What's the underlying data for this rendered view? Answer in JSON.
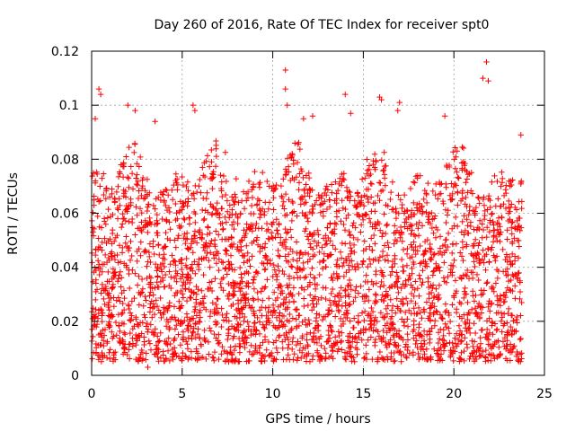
{
  "chart_data": {
    "type": "scatter",
    "title": "Day 260 of 2016, Rate Of TEC Index for receiver spt0",
    "xlabel": "GPS time / hours",
    "ylabel": "ROTI / TECUs",
    "xlim": [
      0,
      25
    ],
    "ylim": [
      0,
      0.12
    ],
    "xticks": [
      0,
      5,
      10,
      15,
      20,
      25
    ],
    "xtick_labels": [
      "0",
      "5",
      "10",
      "15",
      "20",
      "25"
    ],
    "yticks": [
      0,
      0.02,
      0.04,
      0.06,
      0.08,
      0.1,
      0.12
    ],
    "ytick_labels": [
      "0",
      "0.02",
      "0.04",
      "0.06",
      "0.08",
      "0.1",
      "0.12"
    ],
    "grid": true,
    "marker": "+",
    "series": [
      {
        "name": "spt0",
        "color": "#ff0000",
        "x_range": [
          0,
          23.75
        ],
        "typical_min": 0.005,
        "typical_max": 0.08,
        "notable_points": [
          {
            "x": 0.4,
            "y": 0.106
          },
          {
            "x": 0.5,
            "y": 0.104
          },
          {
            "x": 0.2,
            "y": 0.095
          },
          {
            "x": 2.0,
            "y": 0.1
          },
          {
            "x": 2.4,
            "y": 0.098
          },
          {
            "x": 3.5,
            "y": 0.094
          },
          {
            "x": 5.6,
            "y": 0.1
          },
          {
            "x": 5.7,
            "y": 0.098
          },
          {
            "x": 10.7,
            "y": 0.113
          },
          {
            "x": 10.7,
            "y": 0.106
          },
          {
            "x": 10.8,
            "y": 0.1
          },
          {
            "x": 11.7,
            "y": 0.095
          },
          {
            "x": 12.2,
            "y": 0.096
          },
          {
            "x": 14.0,
            "y": 0.104
          },
          {
            "x": 14.3,
            "y": 0.097
          },
          {
            "x": 15.9,
            "y": 0.103
          },
          {
            "x": 16.0,
            "y": 0.102
          },
          {
            "x": 17.0,
            "y": 0.101
          },
          {
            "x": 16.9,
            "y": 0.098
          },
          {
            "x": 19.5,
            "y": 0.096
          },
          {
            "x": 21.6,
            "y": 0.11
          },
          {
            "x": 21.8,
            "y": 0.116
          },
          {
            "x": 21.9,
            "y": 0.109
          },
          {
            "x": 23.7,
            "y": 0.089
          },
          {
            "x": 3.1,
            "y": 0.003
          }
        ]
      }
    ]
  }
}
